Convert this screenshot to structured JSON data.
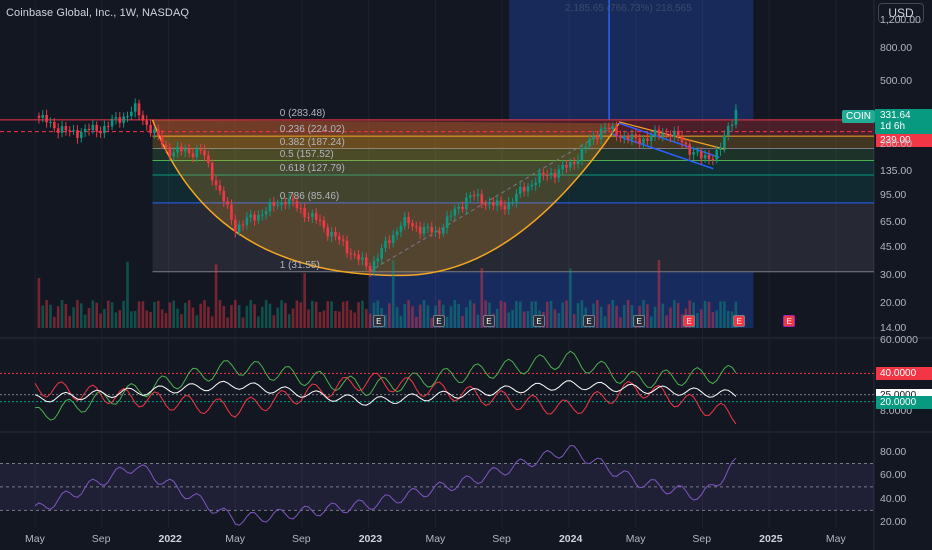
{
  "header": {
    "title": "Coinbase Global, Inc., 1W, NASDAQ"
  },
  "currency_button": "USD",
  "measure_label": "2,185.65 (766.73%) 218,565",
  "ticker_tag": "COIN",
  "last_price": {
    "value": "331.64",
    "countdown": "1d 6h"
  },
  "price_tags": {
    "level_239": "239.00"
  },
  "price_axis": [
    "1,200.00",
    "800.00",
    "500.00",
    "200.00",
    "135.00",
    "95.00",
    "65.00",
    "45.00",
    "30.00",
    "20.00",
    "14.00"
  ],
  "osc_axis": {
    "tick_top": "60.0000",
    "tick_bottom": "8.0000",
    "tags": [
      "40.0000",
      "25.0000",
      "20.0000"
    ]
  },
  "rsi_axis": [
    "80.00",
    "60.00",
    "40.00",
    "20.00"
  ],
  "x_axis": [
    {
      "label": "May",
      "bold": false
    },
    {
      "label": "Sep",
      "bold": false
    },
    {
      "label": "2022",
      "bold": true
    },
    {
      "label": "May",
      "bold": false
    },
    {
      "label": "Sep",
      "bold": false
    },
    {
      "label": "2023",
      "bold": true
    },
    {
      "label": "May",
      "bold": false
    },
    {
      "label": "Sep",
      "bold": false
    },
    {
      "label": "2024",
      "bold": true
    },
    {
      "label": "May",
      "bold": false
    },
    {
      "label": "Sep",
      "bold": false
    },
    {
      "label": "2025",
      "bold": true
    },
    {
      "label": "May",
      "bold": false
    }
  ],
  "fib_levels": [
    {
      "ratio": "0",
      "price": "283.48",
      "label": "0 (283.48)"
    },
    {
      "ratio": "0.236",
      "price": "224.02",
      "label": "0.236 (224.02)"
    },
    {
      "ratio": "0.382",
      "price": "187.24",
      "label": "0.382 (187.24)"
    },
    {
      "ratio": "0.5",
      "price": "157.52",
      "label": "0.5 (157.52)"
    },
    {
      "ratio": "0.618",
      "price": "127.79",
      "label": "0.618 (127.79)"
    },
    {
      "ratio": "0.786",
      "price": "85.46",
      "label": "0.786 (85.46)"
    },
    {
      "ratio": "1",
      "price": "31.55",
      "label": "1 (31.55)"
    }
  ],
  "earnings_badge": "E",
  "colors": {
    "up": "#089981",
    "down": "#f23645",
    "bg": "#131722",
    "accent": "#2962ff",
    "cup": "#f5a623"
  },
  "chart_data": {
    "type": "candlestick",
    "title": "Coinbase Global, Inc., 1W, NASDAQ",
    "price_scale": "log",
    "ylim": [
      14,
      1200
    ],
    "x_range": [
      "2021-04",
      "2025-06"
    ],
    "series": [
      {
        "name": "price",
        "points": [
          [
            "2021-05",
            300
          ],
          [
            "2021-07",
            235
          ],
          [
            "2021-09",
            250
          ],
          [
            "2021-11",
            330
          ],
          [
            "2022-01",
            180
          ],
          [
            "2022-03",
            180
          ],
          [
            "2022-05",
            60
          ],
          [
            "2022-08",
            90
          ],
          [
            "2022-10",
            65
          ],
          [
            "2023-01",
            33
          ],
          [
            "2023-03",
            65
          ],
          [
            "2023-05",
            55
          ],
          [
            "2023-07",
            95
          ],
          [
            "2023-09",
            80
          ],
          [
            "2023-11",
            120
          ],
          [
            "2024-01",
            145
          ],
          [
            "2024-03",
            255
          ],
          [
            "2024-05",
            210
          ],
          [
            "2024-07",
            240
          ],
          [
            "2024-09",
            160
          ],
          [
            "2024-10",
            180
          ],
          [
            "2024-11",
            331.64
          ]
        ]
      },
      {
        "name": "oscillator_plus",
        "points": [
          [
            "2021-05",
            10
          ],
          [
            "2022-05",
            45
          ],
          [
            "2023-01",
            30
          ],
          [
            "2024-01",
            50
          ],
          [
            "2024-05",
            35
          ],
          [
            "2024-11",
            40
          ]
        ]
      },
      {
        "name": "oscillator_minus",
        "points": [
          [
            "2021-05",
            30
          ],
          [
            "2022-05",
            15
          ],
          [
            "2023-01",
            35
          ],
          [
            "2024-01",
            15
          ],
          [
            "2024-05",
            30
          ],
          [
            "2024-11",
            10
          ]
        ]
      },
      {
        "name": "RSI",
        "points": [
          [
            "2021-05",
            30
          ],
          [
            "2021-11",
            68
          ],
          [
            "2022-05",
            22
          ],
          [
            "2023-01",
            35
          ],
          [
            "2023-07",
            55
          ],
          [
            "2024-01",
            82
          ],
          [
            "2024-05",
            55
          ],
          [
            "2024-09",
            42
          ],
          [
            "2024-11",
            70
          ]
        ]
      }
    ]
  }
}
